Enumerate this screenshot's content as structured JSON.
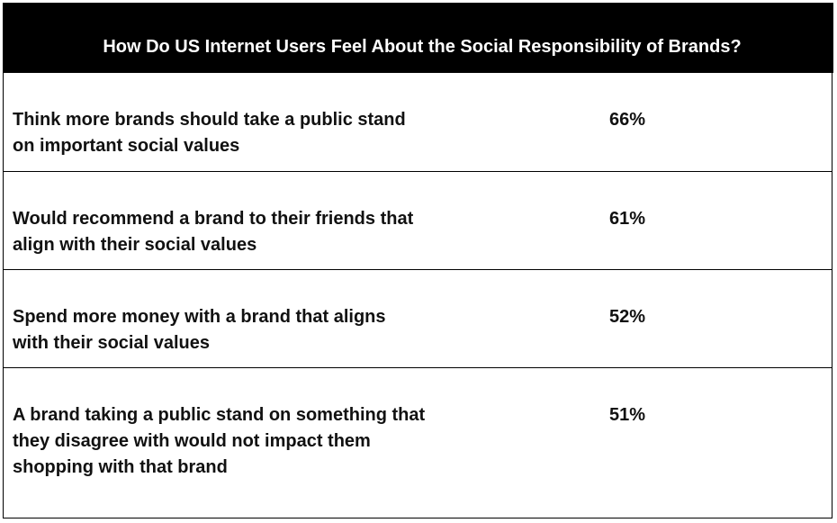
{
  "table": {
    "title": "How Do US Internet Users Feel About the Social Responsibility of Brands?",
    "rows": [
      {
        "label": "Think more brands should take a public stand on important social values",
        "value": "66%"
      },
      {
        "label": "Would recommend a brand to their friends that align with their social values",
        "value": "61%"
      },
      {
        "label": "Spend more money with a brand that aligns with their social values",
        "value": "52%"
      },
      {
        "label": "A brand taking a public stand on something that they disagree with would not impact them shopping with that brand",
        "value": "51%"
      }
    ]
  },
  "colors": {
    "header_background": "#000000",
    "header_text": "#ffffff",
    "body_text": "#111111",
    "border": "#000000"
  }
}
